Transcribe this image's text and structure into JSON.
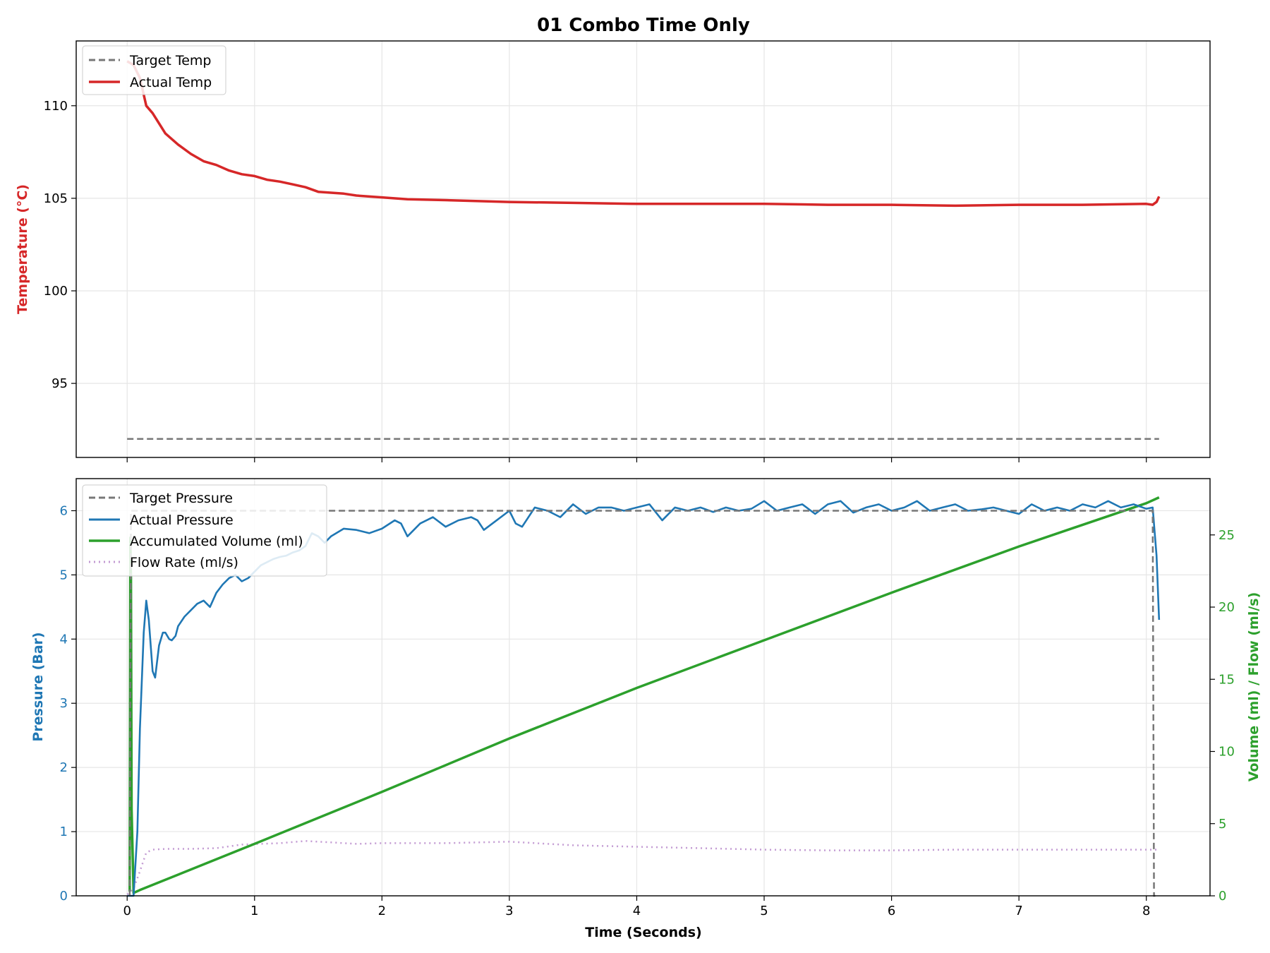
{
  "chart_data": [
    {
      "type": "line",
      "panel": "top",
      "title": "01 Combo Time Only",
      "ylabel": "Temperature (°C)",
      "xlim": [
        -0.4,
        8.5
      ],
      "ylim": [
        91.0,
        113.5
      ],
      "yticks": [
        95,
        100,
        105,
        110
      ],
      "xticks": [
        0,
        1,
        2,
        3,
        4,
        5,
        6,
        7,
        8
      ],
      "grid": true,
      "legend_position": "top-left",
      "colors": {
        "target": "#777777",
        "actual": "#d62728",
        "ylabel": "#d62728"
      },
      "series": [
        {
          "name": "Target Temp",
          "style": "dashed",
          "x": [
            0,
            8.1
          ],
          "y": [
            92.0,
            92.0
          ]
        },
        {
          "name": "Actual Temp",
          "style": "solid",
          "x": [
            0,
            0.05,
            0.1,
            0.15,
            0.2,
            0.3,
            0.4,
            0.5,
            0.6,
            0.7,
            0.8,
            0.9,
            1.0,
            1.1,
            1.2,
            1.3,
            1.4,
            1.5,
            1.6,
            1.7,
            1.8,
            2.0,
            2.2,
            2.5,
            3.0,
            3.5,
            4.0,
            4.5,
            5.0,
            5.5,
            6.0,
            6.5,
            7.0,
            7.5,
            8.0,
            8.05,
            8.08,
            8.1
          ],
          "y": [
            112.4,
            112.2,
            111.5,
            110.0,
            109.6,
            108.5,
            107.9,
            107.4,
            107.0,
            106.8,
            106.5,
            106.3,
            106.2,
            106.0,
            105.9,
            105.75,
            105.6,
            105.35,
            105.3,
            105.25,
            105.15,
            105.05,
            104.95,
            104.9,
            104.8,
            104.75,
            104.7,
            104.7,
            104.7,
            104.65,
            104.65,
            104.6,
            104.65,
            104.65,
            104.7,
            104.65,
            104.8,
            105.1
          ]
        }
      ]
    },
    {
      "type": "line",
      "panel": "bottom",
      "xlabel": "Time (Seconds)",
      "ylabel": "Pressure (Bar)",
      "y2label": "Volume (ml) / Flow (ml/s)",
      "xlim": [
        -0.4,
        8.5
      ],
      "ylim": [
        0,
        6.5
      ],
      "y2lim": [
        0,
        28.9
      ],
      "yticks": [
        0,
        1,
        2,
        3,
        4,
        5,
        6
      ],
      "y2ticks": [
        0,
        5,
        10,
        15,
        20,
        25
      ],
      "xticks": [
        0,
        1,
        2,
        3,
        4,
        5,
        6,
        7,
        8
      ],
      "grid": true,
      "legend_position": "top-left",
      "colors": {
        "target": "#777777",
        "pressure": "#1f77b4",
        "volume": "#2ca02c",
        "flow": "#c39bd3"
      },
      "series": [
        {
          "name": "Target Pressure",
          "style": "dashed",
          "axis": "left",
          "x": [
            0.02,
            0.03,
            0.04,
            8.05,
            8.06,
            8.07
          ],
          "y": [
            0,
            6.0,
            6.0,
            6.0,
            0,
            0
          ]
        },
        {
          "name": "Actual Pressure",
          "style": "solid",
          "axis": "left",
          "x": [
            0,
            0.05,
            0.08,
            0.1,
            0.13,
            0.15,
            0.17,
            0.2,
            0.22,
            0.25,
            0.28,
            0.3,
            0.33,
            0.35,
            0.38,
            0.4,
            0.45,
            0.5,
            0.55,
            0.6,
            0.65,
            0.7,
            0.75,
            0.8,
            0.85,
            0.9,
            0.95,
            1.0,
            1.05,
            1.1,
            1.15,
            1.2,
            1.25,
            1.3,
            1.35,
            1.4,
            1.45,
            1.5,
            1.55,
            1.6,
            1.7,
            1.8,
            1.9,
            2.0,
            2.1,
            2.15,
            2.2,
            2.3,
            2.4,
            2.5,
            2.6,
            2.7,
            2.75,
            2.8,
            2.9,
            3.0,
            3.05,
            3.1,
            3.2,
            3.3,
            3.4,
            3.5,
            3.6,
            3.7,
            3.8,
            3.9,
            4.0,
            4.1,
            4.2,
            4.3,
            4.4,
            4.5,
            4.6,
            4.7,
            4.8,
            4.9,
            5.0,
            5.1,
            5.2,
            5.3,
            5.4,
            5.5,
            5.6,
            5.7,
            5.8,
            5.9,
            6.0,
            6.1,
            6.2,
            6.3,
            6.4,
            6.5,
            6.6,
            6.7,
            6.8,
            6.9,
            7.0,
            7.1,
            7.2,
            7.3,
            7.4,
            7.5,
            7.6,
            7.7,
            7.8,
            7.9,
            8.0,
            8.05,
            8.08,
            8.1
          ],
          "y": [
            0.0,
            0.0,
            1.0,
            2.6,
            4.1,
            4.6,
            4.3,
            3.5,
            3.4,
            3.9,
            4.1,
            4.1,
            4.0,
            3.98,
            4.05,
            4.2,
            4.35,
            4.45,
            4.55,
            4.6,
            4.5,
            4.72,
            4.85,
            4.95,
            5.0,
            4.9,
            4.95,
            5.05,
            5.15,
            5.2,
            5.25,
            5.28,
            5.3,
            5.35,
            5.38,
            5.45,
            5.65,
            5.6,
            5.5,
            5.6,
            5.72,
            5.7,
            5.65,
            5.72,
            5.85,
            5.8,
            5.6,
            5.8,
            5.9,
            5.75,
            5.85,
            5.9,
            5.85,
            5.7,
            5.85,
            6.0,
            5.8,
            5.75,
            6.05,
            6.0,
            5.9,
            6.1,
            5.95,
            6.05,
            6.05,
            6.0,
            6.05,
            6.1,
            5.85,
            6.05,
            6.0,
            6.05,
            5.98,
            6.05,
            6.0,
            6.03,
            6.15,
            6.0,
            6.05,
            6.1,
            5.95,
            6.1,
            6.15,
            5.97,
            6.05,
            6.1,
            6.0,
            6.05,
            6.15,
            6.0,
            6.05,
            6.1,
            6.0,
            6.02,
            6.05,
            6.0,
            5.95,
            6.1,
            6.0,
            6.05,
            6.0,
            6.1,
            6.05,
            6.15,
            6.05,
            6.1,
            6.03,
            6.05,
            5.3,
            4.3
          ]
        },
        {
          "name": "Accumulated Volume (ml)",
          "style": "solid",
          "axis": "right",
          "x": [
            0.02,
            0.025,
            0.03,
            0.035,
            0.05,
            0.1,
            1.0,
            2.0,
            3.0,
            4.0,
            5.0,
            6.0,
            7.0,
            8.0,
            8.1
          ],
          "y": [
            0.3,
            24.8,
            22.0,
            6.0,
            0.2,
            0.4,
            3.6,
            7.2,
            10.9,
            14.4,
            17.7,
            21.0,
            24.2,
            27.2,
            27.6
          ]
        },
        {
          "name": "Flow Rate (ml/s)",
          "style": "dotted",
          "axis": "right",
          "x": [
            0,
            0.05,
            0.1,
            0.15,
            0.2,
            0.3,
            0.5,
            0.7,
            0.9,
            1.2,
            1.4,
            1.6,
            1.8,
            2.0,
            2.5,
            3.0,
            3.5,
            4.0,
            4.5,
            5.0,
            5.5,
            6.0,
            6.5,
            7.0,
            7.5,
            8.0,
            8.1
          ],
          "y": [
            0.1,
            0.5,
            1.7,
            3.0,
            3.2,
            3.25,
            3.25,
            3.3,
            3.55,
            3.65,
            3.8,
            3.7,
            3.6,
            3.65,
            3.65,
            3.75,
            3.5,
            3.4,
            3.3,
            3.2,
            3.15,
            3.15,
            3.2,
            3.2,
            3.2,
            3.2,
            3.2
          ]
        }
      ]
    }
  ]
}
